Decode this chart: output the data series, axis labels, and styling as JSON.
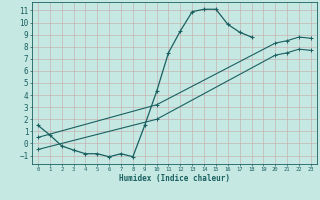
{
  "xlabel": "Humidex (Indice chaleur)",
  "bg_color": "#c5e8e3",
  "line_color": "#1a6060",
  "grid_color": "#c8a8a8",
  "xlim": [
    -0.5,
    23.5
  ],
  "ylim": [
    -1.7,
    11.7
  ],
  "xticks": [
    0,
    1,
    2,
    3,
    4,
    5,
    6,
    7,
    8,
    9,
    10,
    11,
    12,
    13,
    14,
    15,
    16,
    17,
    18,
    19,
    20,
    21,
    22,
    23
  ],
  "yticks": [
    -1,
    0,
    1,
    2,
    3,
    4,
    5,
    6,
    7,
    8,
    9,
    10,
    11
  ],
  "curve_x": [
    0,
    1,
    2,
    3,
    4,
    5,
    6,
    7,
    8,
    9,
    10,
    11,
    12,
    13,
    14,
    15,
    16,
    17,
    18
  ],
  "curve_y": [
    1.5,
    0.7,
    -0.2,
    -0.55,
    -0.85,
    -0.85,
    -1.1,
    -0.85,
    -1.1,
    1.5,
    4.3,
    7.5,
    9.3,
    10.9,
    11.1,
    11.1,
    9.85,
    9.2,
    8.8
  ],
  "line1_x": [
    0,
    10,
    20,
    21,
    22,
    23
  ],
  "line1_y": [
    0.5,
    3.2,
    8.3,
    8.5,
    8.8,
    8.7
  ],
  "line2_x": [
    0,
    10,
    20,
    21,
    22,
    23
  ],
  "line2_y": [
    -0.5,
    2.0,
    7.3,
    7.5,
    7.8,
    7.7
  ],
  "xlabel_fontsize": 5.5,
  "tick_fontsize_x": 4.0,
  "tick_fontsize_y": 5.5,
  "linewidth_curve": 0.9,
  "linewidth_trend": 0.8,
  "marker_size_curve": 3.0,
  "marker_size_trend": 2.5
}
